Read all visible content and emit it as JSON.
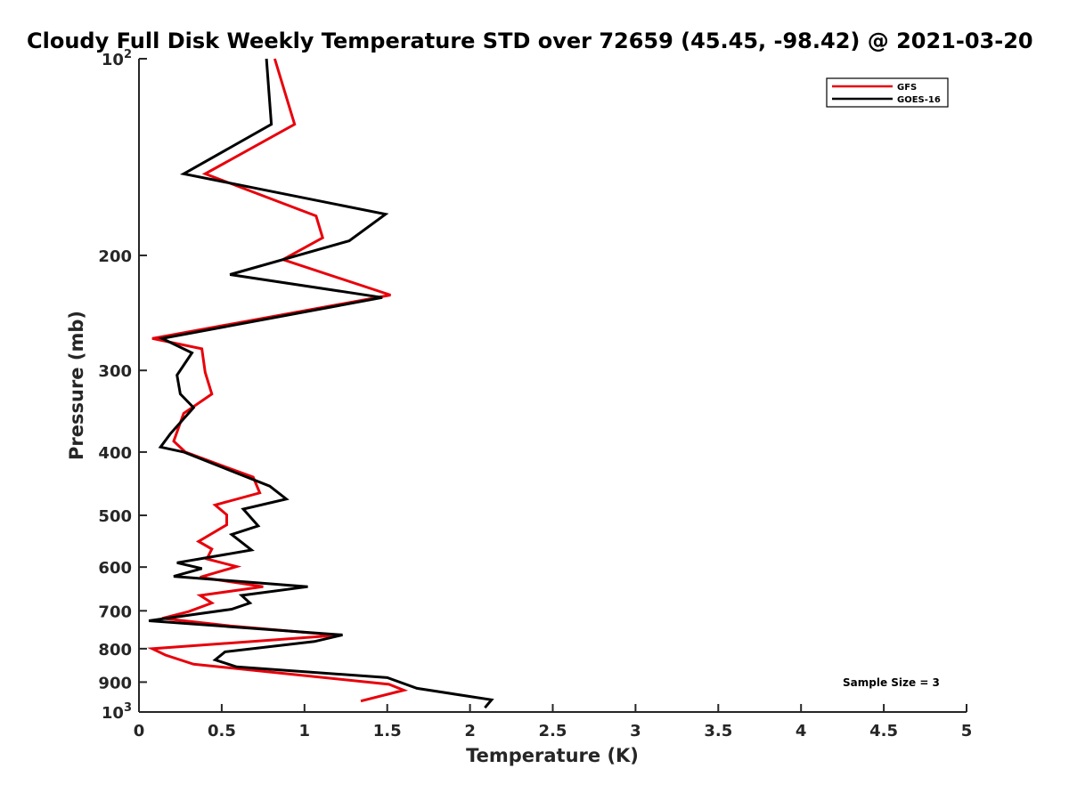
{
  "chart_data": {
    "type": "line",
    "title": "Cloudy Full Disk Weekly Temperature STD over 72659 (45.45, -98.42) @ 2021-03-20",
    "xlabel": "Temperature (K)",
    "ylabel": "Pressure (mb)",
    "xlim": [
      0,
      5
    ],
    "ylim": [
      100,
      1000
    ],
    "y_scale": "log",
    "y_reversed": true,
    "grid": false,
    "legend_position": "top-right",
    "x_ticks": [
      {
        "value": 0,
        "label": "0"
      },
      {
        "value": 0.5,
        "label": "0.5"
      },
      {
        "value": 1,
        "label": "1"
      },
      {
        "value": 1.5,
        "label": "1.5"
      },
      {
        "value": 2,
        "label": "2"
      },
      {
        "value": 2.5,
        "label": "2.5"
      },
      {
        "value": 3,
        "label": "3"
      },
      {
        "value": 3.5,
        "label": "3.5"
      },
      {
        "value": 4,
        "label": "4"
      },
      {
        "value": 4.5,
        "label": "4.5"
      },
      {
        "value": 5,
        "label": "5"
      }
    ],
    "y_ticks": [
      {
        "value": 100,
        "base": "10",
        "exp": "2"
      },
      {
        "value": 200,
        "base": "200",
        "exp": ""
      },
      {
        "value": 300,
        "base": "300",
        "exp": ""
      },
      {
        "value": 400,
        "base": "400",
        "exp": ""
      },
      {
        "value": 500,
        "base": "500",
        "exp": ""
      },
      {
        "value": 600,
        "base": "600",
        "exp": ""
      },
      {
        "value": 700,
        "base": "700",
        "exp": ""
      },
      {
        "value": 800,
        "base": "800",
        "exp": ""
      },
      {
        "value": 900,
        "base": "900",
        "exp": ""
      },
      {
        "value": 1000,
        "base": "10",
        "exp": "3"
      }
    ],
    "series": [
      {
        "name": "GFS",
        "color": "#e8000b",
        "points": [
          [
            0.82,
            100
          ],
          [
            0.94,
            126
          ],
          [
            0.4,
            150
          ],
          [
            1.07,
            174
          ],
          [
            1.11,
            188
          ],
          [
            0.87,
            203
          ],
          [
            1.52,
            230
          ],
          [
            0.08,
            268
          ],
          [
            0.38,
            278
          ],
          [
            0.4,
            302
          ],
          [
            0.44,
            326
          ],
          [
            0.27,
            349
          ],
          [
            0.21,
            385
          ],
          [
            0.28,
            400
          ],
          [
            0.69,
            437
          ],
          [
            0.73,
            462
          ],
          [
            0.46,
            482
          ],
          [
            0.53,
            499
          ],
          [
            0.53,
            517
          ],
          [
            0.36,
            548
          ],
          [
            0.44,
            563
          ],
          [
            0.41,
            583
          ],
          [
            0.59,
            599
          ],
          [
            0.37,
            622
          ],
          [
            0.75,
            643
          ],
          [
            0.37,
            663
          ],
          [
            0.44,
            681
          ],
          [
            0.3,
            702
          ],
          [
            0.14,
            719
          ],
          [
            0.55,
            738
          ],
          [
            1.2,
            763
          ],
          [
            0.08,
            800
          ],
          [
            0.16,
            818
          ],
          [
            0.33,
            845
          ],
          [
            0.82,
            870
          ],
          [
            1.51,
            907
          ],
          [
            1.6,
            926
          ],
          [
            1.34,
            962
          ]
        ]
      },
      {
        "name": "GOES-16",
        "color": "#000000",
        "points": [
          [
            0.77,
            100
          ],
          [
            0.8,
            126
          ],
          [
            0.27,
            150
          ],
          [
            1.49,
            173
          ],
          [
            1.27,
            190
          ],
          [
            0.55,
            214
          ],
          [
            1.47,
            232
          ],
          [
            0.14,
            268
          ],
          [
            0.32,
            282
          ],
          [
            0.23,
            305
          ],
          [
            0.25,
            326
          ],
          [
            0.33,
            342
          ],
          [
            0.19,
            375
          ],
          [
            0.13,
            393
          ],
          [
            0.27,
            400
          ],
          [
            0.79,
            451
          ],
          [
            0.89,
            472
          ],
          [
            0.63,
            489
          ],
          [
            0.72,
            519
          ],
          [
            0.56,
            535
          ],
          [
            0.68,
            565
          ],
          [
            0.23,
            591
          ],
          [
            0.38,
            603
          ],
          [
            0.21,
            620
          ],
          [
            1.02,
            643
          ],
          [
            0.62,
            663
          ],
          [
            0.67,
            681
          ],
          [
            0.56,
            696
          ],
          [
            0.06,
            725
          ],
          [
            1.23,
            762
          ],
          [
            1.06,
            780
          ],
          [
            0.52,
            809
          ],
          [
            0.46,
            832
          ],
          [
            0.59,
            853
          ],
          [
            1.5,
            886
          ],
          [
            1.68,
            920
          ],
          [
            2.13,
            958
          ],
          [
            2.09,
            985
          ]
        ]
      }
    ],
    "annotations": [
      "Sample Size = 3"
    ]
  }
}
